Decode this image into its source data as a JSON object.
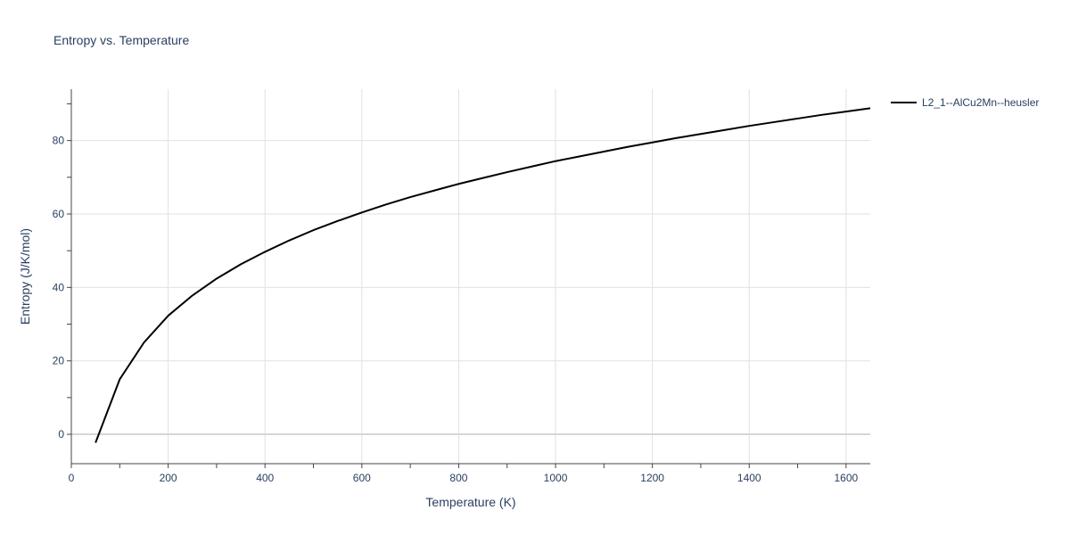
{
  "chart_data": {
    "type": "line",
    "title": "Entropy vs. Temperature",
    "xlabel": "Temperature (K)",
    "ylabel": "Entropy (J/K/mol)",
    "xlim": [
      0,
      1650
    ],
    "ylim": [
      -8,
      94
    ],
    "x_ticks": [
      0,
      200,
      400,
      600,
      800,
      1000,
      1200,
      1400,
      1600
    ],
    "y_ticks": [
      0,
      20,
      40,
      60,
      80
    ],
    "grid": true,
    "legend_position": "top-right-outside",
    "series": [
      {
        "name": "L2_1--AlCu2Mn--heusler",
        "color": "#000000",
        "x": [
          50,
          100,
          150,
          200,
          250,
          300,
          350,
          400,
          450,
          500,
          550,
          600,
          650,
          700,
          750,
          800,
          850,
          900,
          950,
          1000,
          1050,
          1100,
          1150,
          1200,
          1250,
          1300,
          1350,
          1400,
          1450,
          1500,
          1550,
          1600,
          1650
        ],
        "y": [
          -2.3,
          15.0,
          25.0,
          32.3,
          37.8,
          42.4,
          46.3,
          49.7,
          52.8,
          55.6,
          58.1,
          60.4,
          62.6,
          64.6,
          66.4,
          68.2,
          69.8,
          71.4,
          72.9,
          74.4,
          75.7,
          77.0,
          78.3,
          79.5,
          80.7,
          81.8,
          82.9,
          84.0,
          85.0,
          86.0,
          87.0,
          87.9,
          88.8
        ]
      }
    ]
  }
}
